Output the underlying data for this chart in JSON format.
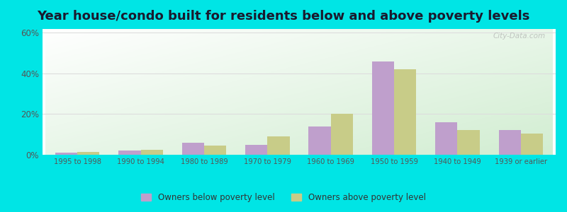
{
  "title": "Year house/condo built for residents below and above poverty levels",
  "categories": [
    "1995 to 1998",
    "1990 to 1994",
    "1980 to 1989",
    "1970 to 1979",
    "1960 to 1969",
    "1950 to 1959",
    "1940 to 1949",
    "1939 or earlier"
  ],
  "below_poverty": [
    1.0,
    2.0,
    6.0,
    5.0,
    14.0,
    46.0,
    16.0,
    12.0
  ],
  "above_poverty": [
    1.5,
    2.5,
    4.5,
    9.0,
    20.0,
    42.0,
    12.0,
    10.5
  ],
  "below_color": "#bf9fcc",
  "above_color": "#c8cc88",
  "outer_background": "#00e5e5",
  "ylim": [
    0,
    62
  ],
  "yticks": [
    0,
    20,
    40,
    60
  ],
  "ytick_labels": [
    "0%",
    "20%",
    "40%",
    "60%"
  ],
  "bar_width": 0.35,
  "legend_below": "Owners below poverty level",
  "legend_above": "Owners above poverty level",
  "title_fontsize": 13,
  "grid_color": "#e8e8e8",
  "tick_color": "#555555"
}
